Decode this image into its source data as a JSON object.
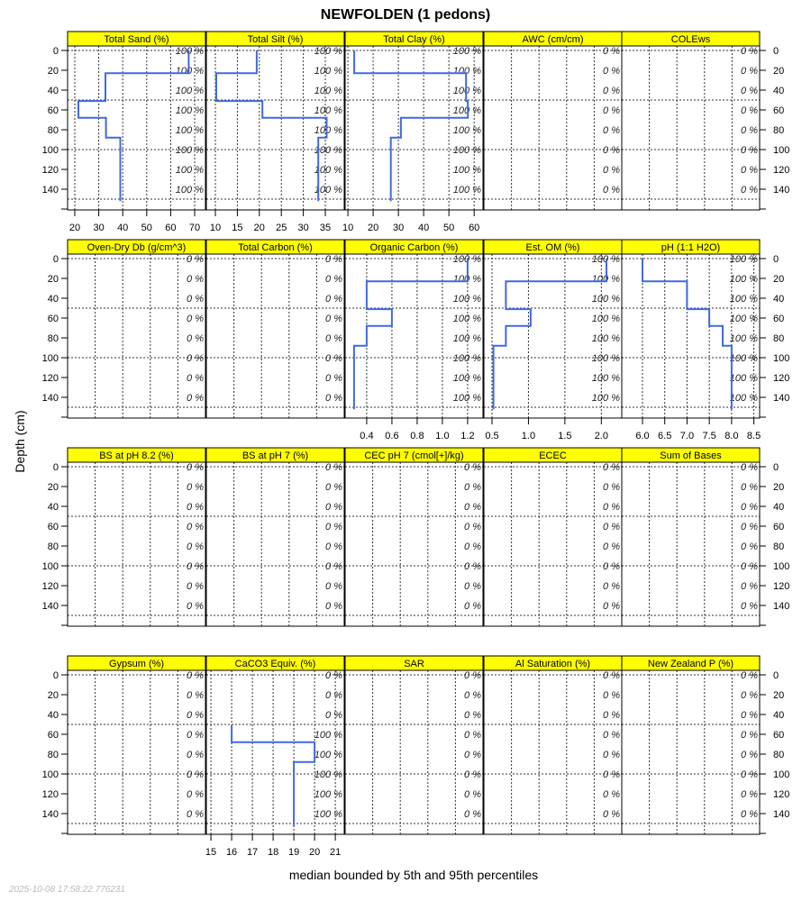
{
  "chart_data": {
    "type": "line",
    "title": "NEWFOLDEN (1 pedons)",
    "ylabel": "Depth (cm)",
    "xlabel": "median bounded by 5th and 95th percentiles",
    "timestamp": "2025-10-08 17:58:22.776231",
    "line_color": "#4169e1",
    "strip_color": "#ffff00",
    "depth_ticks": [
      0,
      20,
      40,
      60,
      80,
      100,
      120,
      140
    ],
    "ylim": [
      160,
      -4.5
    ],
    "panels": [
      {
        "title": "Total Sand (%)",
        "xlim": [
          17,
          74.5
        ],
        "ticks": [
          20,
          30,
          40,
          50,
          60,
          70
        ],
        "percent_labels": [
          "100 %",
          "100 %",
          "100 %",
          "100 %",
          "100 %",
          "100 %",
          "100 %",
          "100 %"
        ],
        "profile": [
          {
            "top": 0,
            "bottom": 23,
            "value": 67.5
          },
          {
            "top": 23,
            "bottom": 51,
            "value": 32.8
          },
          {
            "top": 51,
            "bottom": 68,
            "value": 21.5
          },
          {
            "top": 68,
            "bottom": 88,
            "value": 33
          },
          {
            "top": 88,
            "bottom": 152,
            "value": 39
          }
        ]
      },
      {
        "title": "Total Silt (%)",
        "xlim": [
          7.95,
          39.3
        ],
        "ticks": [
          10,
          15,
          20,
          25,
          30,
          35
        ],
        "percent_labels": [
          "100 %",
          "100 %",
          "100 %",
          "100 %",
          "100 %",
          "100 %",
          "100 %",
          "100 %"
        ],
        "profile": [
          {
            "top": 0,
            "bottom": 23,
            "value": 19.4
          },
          {
            "top": 23,
            "bottom": 51,
            "value": 10.2
          },
          {
            "top": 51,
            "bottom": 68,
            "value": 20.7
          },
          {
            "top": 68,
            "bottom": 88,
            "value": 35.3
          },
          {
            "top": 88,
            "bottom": 152,
            "value": 33.4
          }
        ]
      },
      {
        "title": "Total Clay (%)",
        "xlim": [
          8.9,
          63.5
        ],
        "ticks": [
          10,
          20,
          30,
          40,
          50,
          60
        ],
        "percent_labels": [
          "100 %",
          "100 %",
          "100 %",
          "100 %",
          "100 %",
          "100 %",
          "100 %",
          "100 %"
        ],
        "profile": [
          {
            "top": 0,
            "bottom": 23,
            "value": 12.5
          },
          {
            "top": 23,
            "bottom": 51,
            "value": 56.8
          },
          {
            "top": 51,
            "bottom": 68,
            "value": 57.5
          },
          {
            "top": 68,
            "bottom": 88,
            "value": 31
          },
          {
            "top": 88,
            "bottom": 152,
            "value": 27
          }
        ]
      },
      {
        "title": "AWC (cm/cm)",
        "percent_labels": [
          "0 %",
          "0 %",
          "0 %",
          "0 %",
          "0 %",
          "0 %",
          "0 %",
          "0 %"
        ],
        "profile": []
      },
      {
        "title": "COLEws",
        "percent_labels": [
          "0 %",
          "0 %",
          "0 %",
          "0 %",
          "0 %",
          "0 %",
          "0 %",
          "0 %"
        ],
        "profile": []
      },
      {
        "title": "Oven-Dry Db (g/cm^3)",
        "percent_labels": [
          "0 %",
          "0 %",
          "0 %",
          "0 %",
          "0 %",
          "0 %",
          "0 %",
          "0 %"
        ],
        "profile": []
      },
      {
        "title": "Total Carbon (%)",
        "percent_labels": [
          "0 %",
          "0 %",
          "0 %",
          "0 %",
          "0 %",
          "0 %",
          "0 %",
          "0 %"
        ],
        "profile": []
      },
      {
        "title": "Organic Carbon (%)",
        "xlim": [
          0.229,
          1.322
        ],
        "ticks": [
          0.4,
          0.6,
          0.8,
          1.0,
          1.2
        ],
        "tick_labels": [
          "0.4",
          "0.6",
          "0.8",
          "1.0",
          "1.2"
        ],
        "percent_labels": [
          "100 %",
          "100 %",
          "100 %",
          "100 %",
          "100 %",
          "100 %",
          "100 %",
          "100 %"
        ],
        "profile": [
          {
            "top": 0,
            "bottom": 23,
            "value": 1.2
          },
          {
            "top": 23,
            "bottom": 51,
            "value": 0.4
          },
          {
            "top": 51,
            "bottom": 68,
            "value": 0.6
          },
          {
            "top": 68,
            "bottom": 88,
            "value": 0.4
          },
          {
            "top": 88,
            "bottom": 152,
            "value": 0.3
          }
        ]
      },
      {
        "title": "Est. OM (%)",
        "xlim": [
          0.389,
          2.28
        ],
        "ticks": [
          0.5,
          1.0,
          1.5,
          2.0
        ],
        "tick_labels": [
          "0.5",
          "1.0",
          "1.5",
          "2.0"
        ],
        "percent_labels": [
          "100 %",
          "100 %",
          "100 %",
          "100 %",
          "100 %",
          "100 %",
          "100 %",
          "100 %"
        ],
        "profile": [
          {
            "top": 0,
            "bottom": 23,
            "value": 2.07
          },
          {
            "top": 23,
            "bottom": 51,
            "value": 0.69
          },
          {
            "top": 51,
            "bottom": 68,
            "value": 1.03
          },
          {
            "top": 68,
            "bottom": 88,
            "value": 0.69
          },
          {
            "top": 88,
            "bottom": 152,
            "value": 0.52
          }
        ]
      },
      {
        "title": "pH (1:1 H2O)",
        "xlim": [
          5.535,
          8.63
        ],
        "ticks": [
          6.0,
          6.5,
          7.0,
          7.5,
          8.0,
          8.5
        ],
        "tick_labels": [
          "6.0",
          "6.5",
          "7.0",
          "7.5",
          "8.0",
          "8.5"
        ],
        "percent_labels": [
          "100 %",
          "100 %",
          "100 %",
          "100 %",
          "100 %",
          "100 %",
          "100 %",
          "100 %"
        ],
        "profile": [
          {
            "top": 0,
            "bottom": 23,
            "value": 6.0
          },
          {
            "top": 23,
            "bottom": 51,
            "value": 7.0
          },
          {
            "top": 51,
            "bottom": 68,
            "value": 7.5
          },
          {
            "top": 68,
            "bottom": 88,
            "value": 7.8
          },
          {
            "top": 88,
            "bottom": 152,
            "value": 8.0
          }
        ]
      },
      {
        "title": "BS at pH 8.2 (%)",
        "percent_labels": [
          "0 %",
          "0 %",
          "0 %",
          "0 %",
          "0 %",
          "0 %",
          "0 %",
          "0 %"
        ],
        "profile": []
      },
      {
        "title": "BS at pH 7 (%)",
        "percent_labels": [
          "0 %",
          "0 %",
          "0 %",
          "0 %",
          "0 %",
          "0 %",
          "0 %",
          "0 %"
        ],
        "profile": []
      },
      {
        "title": "CEC pH 7 (cmol[+]/kg)",
        "percent_labels": [
          "0 %",
          "0 %",
          "0 %",
          "0 %",
          "0 %",
          "0 %",
          "0 %",
          "0 %"
        ],
        "profile": []
      },
      {
        "title": "ECEC",
        "percent_labels": [
          "0 %",
          "0 %",
          "0 %",
          "0 %",
          "0 %",
          "0 %",
          "0 %",
          "0 %"
        ],
        "profile": []
      },
      {
        "title": "Sum of Bases",
        "percent_labels": [
          "0 %",
          "0 %",
          "0 %",
          "0 %",
          "0 %",
          "0 %",
          "0 %",
          "0 %"
        ],
        "profile": []
      },
      {
        "title": "Gypsum (%)",
        "percent_labels": [
          "0 %",
          "0 %",
          "0 %",
          "0 %",
          "0 %",
          "0 %",
          "0 %",
          "0 %"
        ],
        "profile": []
      },
      {
        "title": "CaCO3 Equiv. (%)",
        "xlim": [
          14.78,
          21.43
        ],
        "ticks": [
          15,
          16,
          17,
          18,
          19,
          20,
          21
        ],
        "percent_labels": [
          "0 %",
          "0 %",
          "0 %",
          "100 %",
          "100 %",
          "100 %",
          "100 %",
          "100 %"
        ],
        "profile": [
          {
            "top": 51,
            "bottom": 68,
            "value": 16
          },
          {
            "top": 68,
            "bottom": 88,
            "value": 20
          },
          {
            "top": 88,
            "bottom": 152,
            "value": 19
          }
        ]
      },
      {
        "title": "SAR",
        "percent_labels": [
          "0 %",
          "0 %",
          "0 %",
          "0 %",
          "0 %",
          "0 %",
          "0 %",
          "0 %"
        ],
        "profile": []
      },
      {
        "title": "Al Saturation (%)",
        "percent_labels": [
          "0 %",
          "0 %",
          "0 %",
          "0 %",
          "0 %",
          "0 %",
          "0 %",
          "0 %"
        ],
        "profile": []
      },
      {
        "title": "New Zealand P (%)",
        "percent_labels": [
          "0 %",
          "0 %",
          "0 %",
          "0 %",
          "0 %",
          "0 %",
          "0 %",
          "0 %"
        ],
        "profile": []
      }
    ]
  }
}
